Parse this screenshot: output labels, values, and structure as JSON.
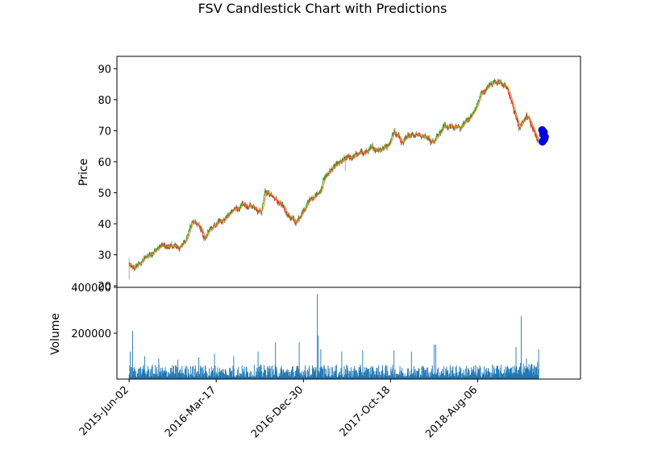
{
  "chart_data": {
    "type": "candlestick",
    "title": "FSV Candlestick Chart with Predictions",
    "price_panel": {
      "ylabel": "Price",
      "ylim": [
        19.5,
        94
      ],
      "yticks": [
        20,
        30,
        40,
        50,
        60,
        70,
        80,
        90
      ],
      "xlim": [
        -35,
        1295
      ],
      "colors": {
        "up": "#2ca02c",
        "down": "#d62728",
        "moving_average": "#ff7f0e",
        "prediction": "#0000ff"
      },
      "anchors": [
        [
          0,
          27
        ],
        [
          10,
          25
        ],
        [
          30,
          27
        ],
        [
          60,
          30.5
        ],
        [
          90,
          32.5
        ],
        [
          150,
          32.5
        ],
        [
          165,
          36
        ],
        [
          180,
          40.5
        ],
        [
          200,
          40
        ],
        [
          215,
          35
        ],
        [
          235,
          38
        ],
        [
          260,
          40.5
        ],
        [
          290,
          43.5
        ],
        [
          320,
          45.5
        ],
        [
          360,
          45.5
        ],
        [
          380,
          44.5
        ],
        [
          390,
          51.5
        ],
        [
          430,
          46.5
        ],
        [
          480,
          40
        ],
        [
          500,
          45
        ],
        [
          520,
          48
        ],
        [
          550,
          50
        ],
        [
          560,
          55
        ],
        [
          580,
          57.5
        ],
        [
          620,
          60.5
        ],
        [
          650,
          62
        ],
        [
          700,
          64
        ],
        [
          740,
          65
        ],
        [
          760,
          70
        ],
        [
          780,
          67
        ],
        [
          800,
          69
        ],
        [
          840,
          68.5
        ],
        [
          870,
          66.5
        ],
        [
          890,
          70
        ],
        [
          910,
          71
        ],
        [
          950,
          71
        ],
        [
          990,
          76
        ],
        [
          1010,
          82
        ],
        [
          1030,
          84
        ],
        [
          1050,
          86.5
        ],
        [
          1070,
          85.5
        ],
        [
          1090,
          82
        ],
        [
          1110,
          74
        ],
        [
          1120,
          70.5
        ],
        [
          1140,
          75
        ],
        [
          1155,
          72.5
        ],
        [
          1170,
          67
        ],
        [
          1175,
          68
        ]
      ],
      "predictions": [
        [
          1185,
          70.2
        ],
        [
          1188,
          68.8
        ],
        [
          1191,
          67.2
        ],
        [
          1186,
          66.5
        ],
        [
          1190,
          69.5
        ],
        [
          1193,
          68
        ]
      ]
    },
    "volume_panel": {
      "ylabel": "Volume",
      "ylim": [
        0,
        400000
      ],
      "yticks": [
        200000,
        400000
      ],
      "tick_labels": [
        "200000",
        "400000"
      ],
      "color": "#1f77b4",
      "spikes": [
        [
          10,
          210000
        ],
        [
          3,
          120000
        ],
        [
          45,
          100000
        ],
        [
          85,
          90000
        ],
        [
          140,
          85000
        ],
        [
          200,
          95000
        ],
        [
          245,
          110000
        ],
        [
          300,
          100000
        ],
        [
          370,
          120000
        ],
        [
          420,
          160000
        ],
        [
          488,
          160000
        ],
        [
          540,
          370000
        ],
        [
          543,
          190000
        ],
        [
          550,
          130000
        ],
        [
          610,
          120000
        ],
        [
          670,
          125000
        ],
        [
          760,
          125000
        ],
        [
          810,
          120000
        ],
        [
          875,
          150000
        ],
        [
          880,
          150000
        ],
        [
          1110,
          140000
        ],
        [
          1125,
          275000
        ],
        [
          1140,
          90000
        ],
        [
          1175,
          130000
        ]
      ]
    },
    "x_tick_labels": [
      "2015-Jun-02",
      "2016-Mar-17",
      "2016-Dec-30",
      "2017-Oct-18",
      "2018-Aug-06"
    ],
    "x_tick_positions": [
      0,
      250,
      500,
      750,
      1000
    ],
    "n_days": 1180
  }
}
